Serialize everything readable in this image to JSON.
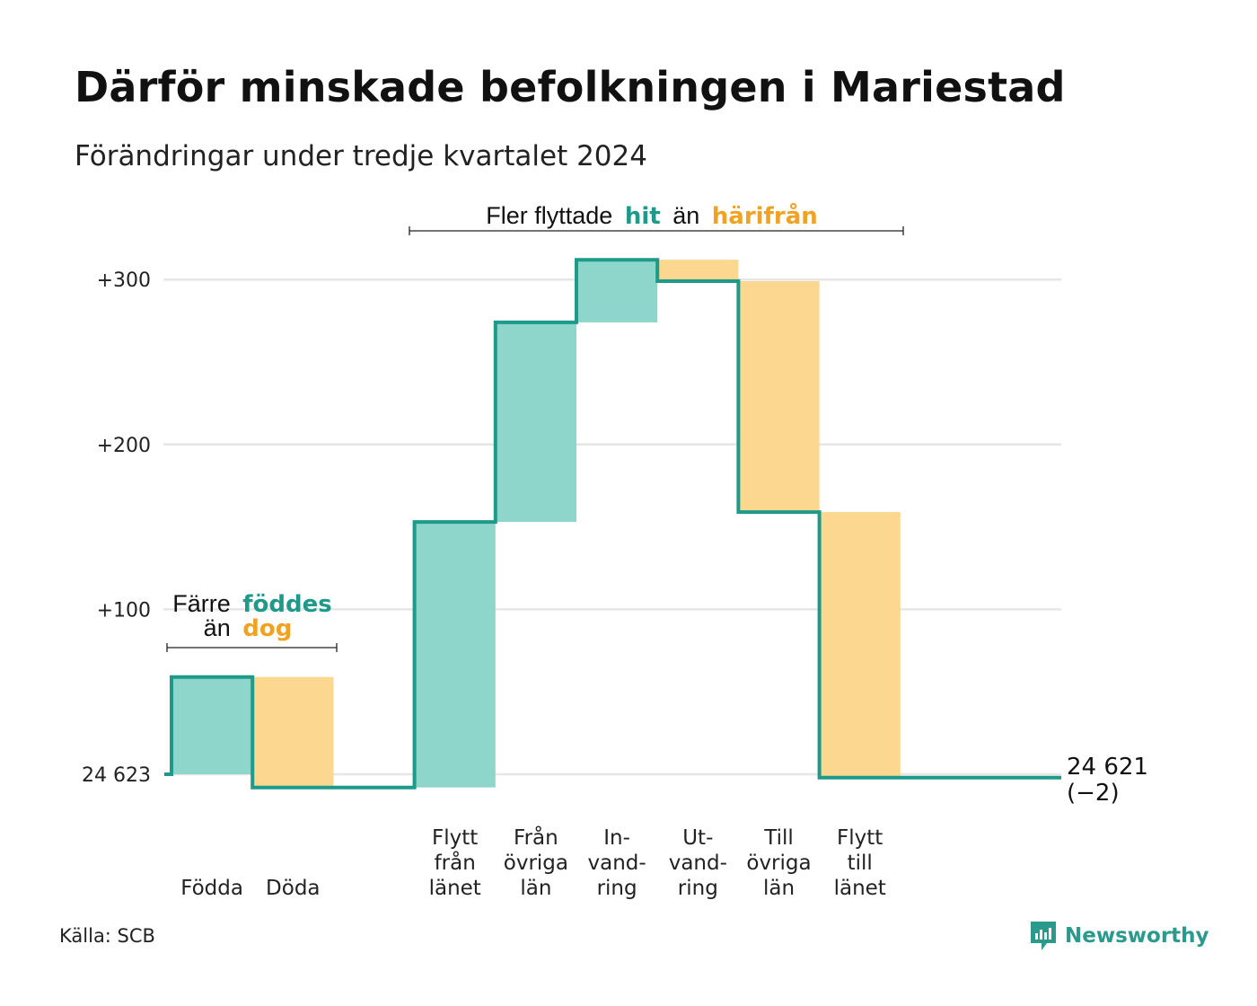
{
  "title": "Därför minskade befolkningen i Mariestad",
  "subtitle": "Förändringar under tredje kvartalet 2024",
  "source": "Källa: SCB",
  "brand": {
    "name": "Newsworthy",
    "icon": "newsworthy-logo-icon",
    "color": "#2a9a8c"
  },
  "colors": {
    "positive": "#8ed5cb",
    "negative": "#fbd78f",
    "line": "#1d9a8a",
    "grid": "#e6e6e6",
    "hit": "#1d9a8a",
    "harifran": "#f0a323"
  },
  "annotations": {
    "births": {
      "line1_prefix": "Färre",
      "line1_hi": "föddes",
      "line2_prefix": "än",
      "line2_hi": "dog"
    },
    "migration": {
      "prefix": "Fler flyttade",
      "hi1": "hit",
      "mid": "än",
      "hi2": "härifrån"
    }
  },
  "end_label": {
    "value": "24 621",
    "change": "(−2)"
  },
  "chart_data": {
    "type": "waterfall",
    "baseline_label": "24 623",
    "y_ticks": [
      "+100",
      "+200",
      "+300"
    ],
    "y_tick_values": [
      100,
      200,
      300
    ],
    "ylim": [
      -20,
      330
    ],
    "steps": [
      {
        "label_lines": [
          "Födda"
        ],
        "change": 59,
        "sign": "positive"
      },
      {
        "label_lines": [
          "Döda"
        ],
        "change": -67,
        "sign": "negative"
      },
      {
        "label_lines": [
          ""
        ],
        "change": 0,
        "sign": "none"
      },
      {
        "label_lines": [
          "Flytt",
          "från",
          "länet"
        ],
        "change": 161,
        "sign": "positive"
      },
      {
        "label_lines": [
          "Från",
          "övriga",
          "län"
        ],
        "change": 121,
        "sign": "positive"
      },
      {
        "label_lines": [
          "In-",
          "vand-",
          "ring"
        ],
        "change": 38,
        "sign": "positive"
      },
      {
        "label_lines": [
          "Ut-",
          "vand-",
          "ring"
        ],
        "change": -13,
        "sign": "negative"
      },
      {
        "label_lines": [
          "Till",
          "övriga",
          "län"
        ],
        "change": -140,
        "sign": "negative"
      },
      {
        "label_lines": [
          "Flytt",
          "till",
          "länet"
        ],
        "change": -161,
        "sign": "negative"
      },
      {
        "label_lines": [
          ""
        ],
        "change": 0,
        "sign": "none"
      }
    ],
    "start_value": 0,
    "end_value": -2,
    "grid": true
  }
}
